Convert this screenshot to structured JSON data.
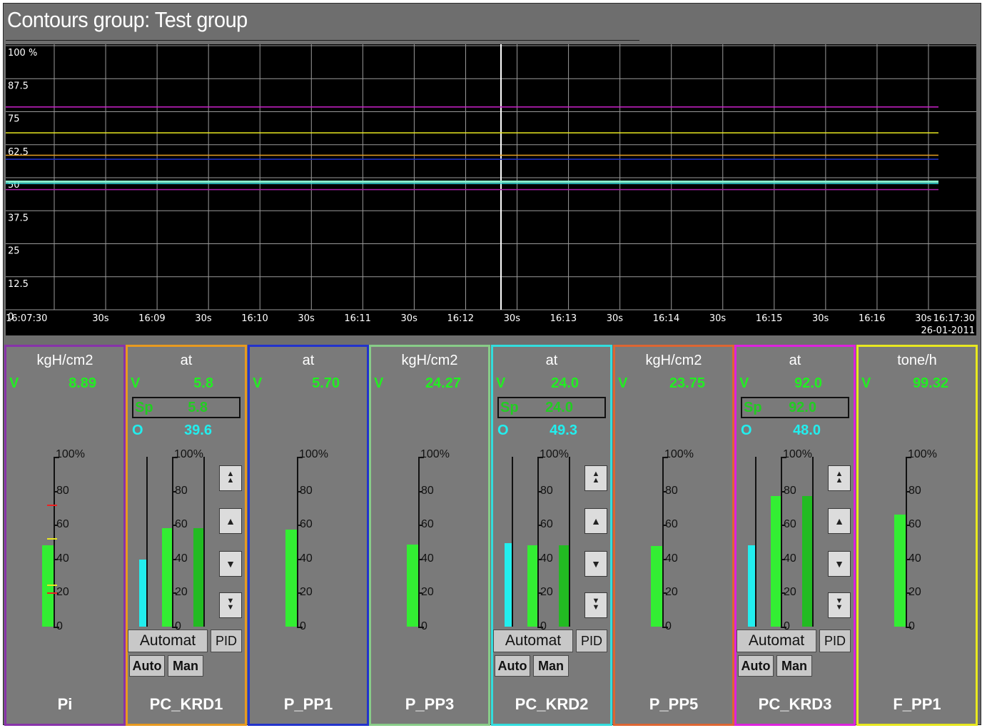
{
  "title": "Contours group: Test group",
  "trend": {
    "y_labels": [
      "100 %",
      "87.5",
      "75",
      "62.5",
      "50",
      "37.5",
      "25",
      "12.5",
      "0"
    ],
    "x_labels": [
      "16:07:30",
      "30s",
      "16:09",
      "30s",
      "16:10",
      "30s",
      "16:11",
      "30s",
      "16:12",
      "30s",
      "16:13",
      "30s",
      "16:14",
      "30s",
      "16:15",
      "30s",
      "16:16",
      "30s",
      "16:17:30"
    ],
    "date_label": "26-01-2011",
    "lines": [
      {
        "color": "#cc22cc",
        "value": 76.8
      },
      {
        "color": "#e8e820",
        "value": 67.0
      },
      {
        "color": "#e8a020",
        "value": 58.5
      },
      {
        "color": "#2233cc",
        "value": 57.0
      },
      {
        "color": "#88eecc",
        "value": 48.5
      },
      {
        "color": "#33dddd",
        "value": 47.8
      },
      {
        "color": "#aa22aa",
        "value": 45.5
      }
    ]
  },
  "panels": [
    {
      "id": "Pi",
      "name": "Pi",
      "unit": "kgH/cm2",
      "border": "#8833aa",
      "V": "8.89",
      "bar": 48,
      "type": "simple",
      "marks": [
        {
          "v": 72,
          "c": "#ee2222"
        },
        {
          "v": 52,
          "c": "#e8e820"
        },
        {
          "v": 25,
          "c": "#e8e820"
        },
        {
          "v": 20,
          "c": "#ee2222"
        }
      ]
    },
    {
      "id": "PC_KRD1",
      "name": "PC_KRD1",
      "unit": "at",
      "border": "#e89a20",
      "V": "5.8",
      "Sp": "5.8",
      "O": "39.6",
      "type": "pid",
      "cyan": 39.6,
      "pv": 58,
      "sp": 58,
      "mode": "Automat",
      "pid": "PID",
      "auto": "Auto",
      "man": "Man"
    },
    {
      "id": "P_PP1",
      "name": "P_PP1",
      "unit": "at",
      "border": "#2233cc",
      "V": "5.70",
      "bar": 57,
      "type": "simple",
      "marks": []
    },
    {
      "id": "P_PP3",
      "name": "P_PP3",
      "unit": "kgH/cm2",
      "border": "#88cc88",
      "V": "24.27",
      "bar": 48.5,
      "type": "simple",
      "marks": []
    },
    {
      "id": "PC_KRD2",
      "name": "PC_KRD2",
      "unit": "at",
      "border": "#33dddd",
      "V": "24.0",
      "Sp": "24.0",
      "O": "49.3",
      "type": "pid",
      "cyan": 49.3,
      "pv": 48,
      "sp": 48,
      "mode": "Automat",
      "pid": "PID",
      "auto": "Auto",
      "man": "Man"
    },
    {
      "id": "P_PP5",
      "name": "P_PP5",
      "unit": "kgH/cm2",
      "border": "#dd6633",
      "V": "23.75",
      "bar": 47.5,
      "type": "simple",
      "marks": []
    },
    {
      "id": "PC_KRD3",
      "name": "PC_KRD3",
      "unit": "at",
      "border": "#dd22dd",
      "V": "92.0",
      "Sp": "92.0",
      "O": "48.0",
      "type": "pid",
      "cyan": 48,
      "pv": 77,
      "sp": 77,
      "mode": "Automat",
      "pid": "PID",
      "auto": "Auto",
      "man": "Man"
    },
    {
      "id": "F_PP1",
      "name": "F_PP1",
      "unit": "tone/h",
      "border": "#e8e820",
      "V": "99.32",
      "bar": 66,
      "type": "simple",
      "marks": []
    }
  ],
  "scale_labels": [
    "100%",
    "80",
    "60",
    "40",
    "20",
    "0"
  ],
  "labels": {
    "V": "V",
    "Sp": "Sp",
    "O": "O"
  }
}
